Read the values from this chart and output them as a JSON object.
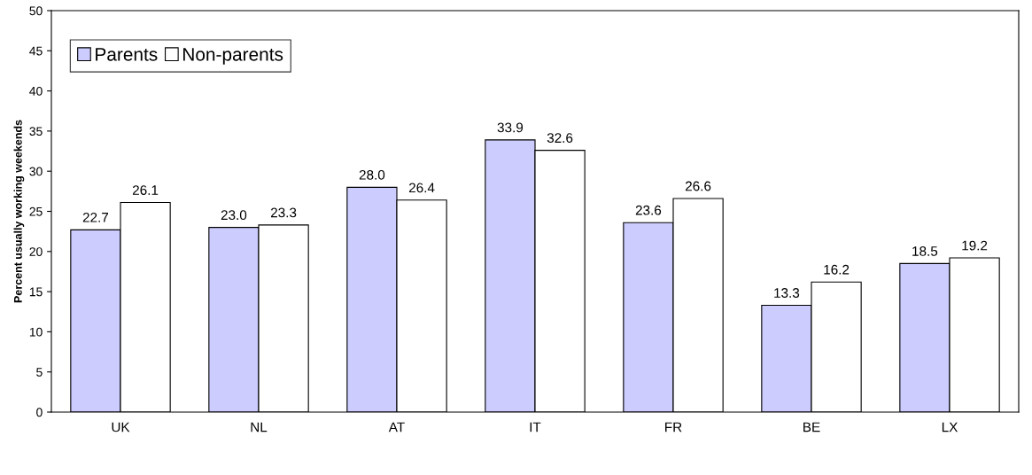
{
  "chart_data": {
    "type": "bar",
    "ylabel": "Percent usually working weekends",
    "categories": [
      "UK",
      "NL",
      "AT",
      "IT",
      "FR",
      "BE",
      "LX"
    ],
    "series": [
      {
        "name": "Parents",
        "color": "#ccccff",
        "values": [
          22.7,
          23.0,
          28.0,
          33.9,
          23.6,
          13.3,
          18.5
        ],
        "value_labels": [
          "22.7",
          "23.0",
          "28.0",
          "33.9",
          "23.6",
          "13.3",
          "18.5"
        ]
      },
      {
        "name": "Non-parents",
        "color": "#ffffff",
        "values": [
          26.1,
          23.3,
          26.4,
          32.6,
          26.6,
          16.2,
          19.2
        ],
        "value_labels": [
          "26.1",
          "23.3",
          "26.4",
          "32.6",
          "26.6",
          "16.2",
          "19.2"
        ]
      }
    ],
    "ylim": [
      0,
      50
    ],
    "yticks": [
      0,
      5,
      10,
      15,
      20,
      25,
      30,
      35,
      40,
      45,
      50
    ],
    "legend": "top left",
    "grid": false
  }
}
